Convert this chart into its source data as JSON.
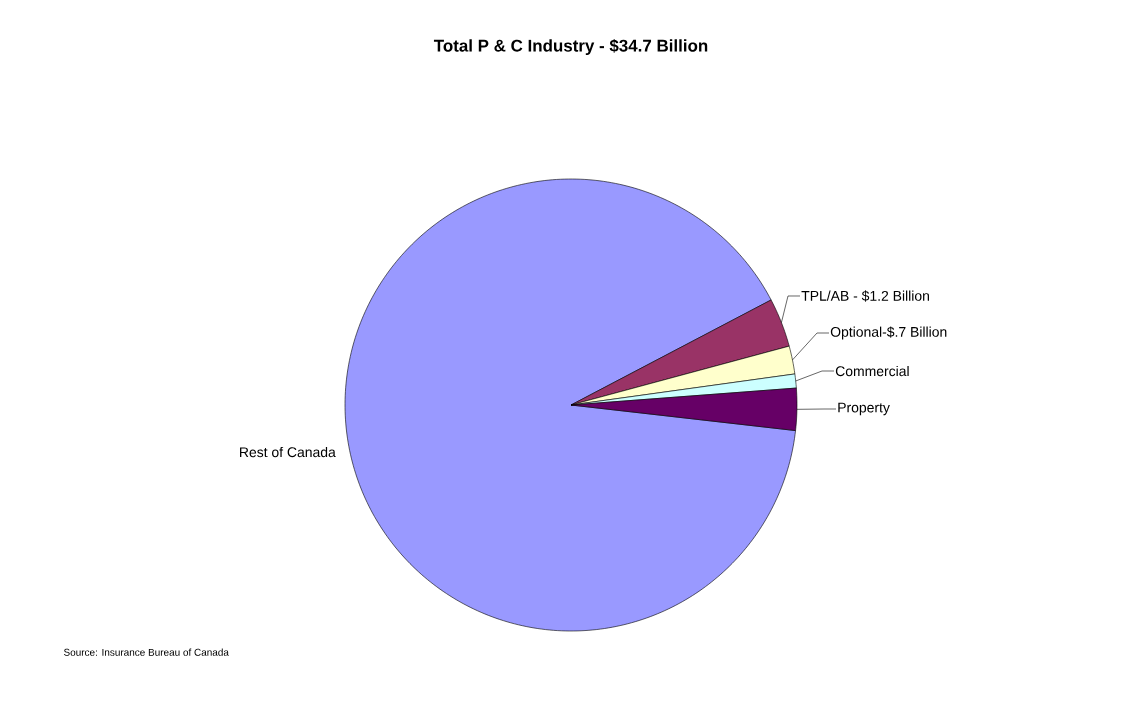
{
  "chart_data": {
    "type": "pie",
    "title": "Total P & C Industry - $34.7 Billion",
    "categories": [
      "Rest of Canada",
      "TPL/AB - $1.2 Billion",
      "Optional-$.7 Billion",
      "Commercial",
      "Property"
    ],
    "values": [
      90.5,
      3.5,
      2.0,
      1.0,
      3.0
    ],
    "colors": [
      "#9999ff",
      "#993366",
      "#ffffcc",
      "#ccffff",
      "#660066"
    ],
    "annotations": [
      "Source: Insurance Bureau of Canada"
    ]
  }
}
